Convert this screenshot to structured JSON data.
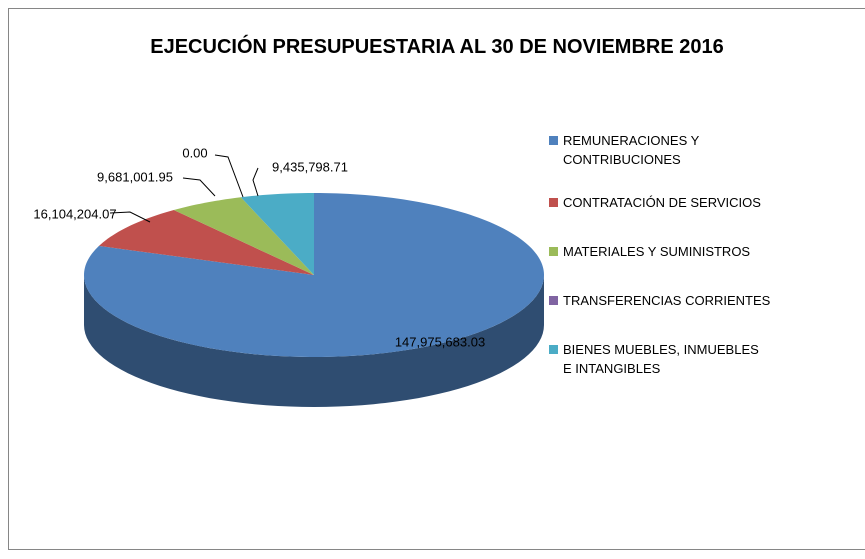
{
  "chart_data": {
    "type": "pie3d",
    "title": "EJECUCIÓN PRESUPUESTARIA AL 30 DE NOVIEMBRE 2016",
    "categories": [
      "REMUNERACIONES Y CONTRIBUCIONES",
      "CONTRATACIÓN DE SERVICIOS",
      "MATERIALES Y SUMINISTROS",
      "TRANSFERENCIAS CORRIENTES",
      "BIENES MUEBLES, INMUEBLES E INTANGIBLES"
    ],
    "values": [
      147975683.03,
      16104204.07,
      9681001.95,
      0,
      9435798.71
    ],
    "value_labels": [
      "147,975,683.03",
      "16,104,204.07",
      "9,681,001.95",
      "0.00",
      "9,435,798.71"
    ],
    "colors": [
      "#4f81bd",
      "#c0504d",
      "#9bbb59",
      "#8064a2",
      "#4bacc6"
    ],
    "legend": "right"
  }
}
